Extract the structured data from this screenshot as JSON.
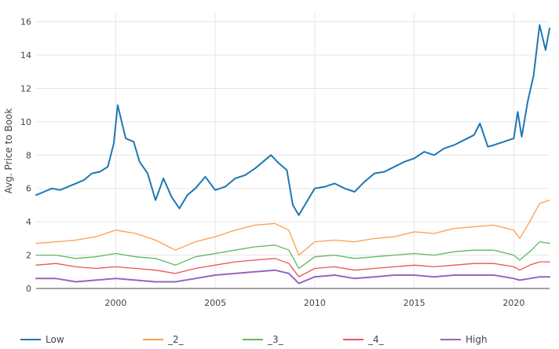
{
  "chart_data": {
    "type": "line",
    "title": "",
    "xlabel": "",
    "ylabel": "Avg. Price to Book",
    "xlim": [
      1996.0,
      2021.8
    ],
    "ylim": [
      0,
      16.5
    ],
    "x_ticks": [
      2000,
      2005,
      2010,
      2015,
      2020
    ],
    "y_ticks": [
      0,
      2,
      4,
      6,
      8,
      10,
      12,
      14,
      16
    ],
    "grid": true,
    "legend_position": "bottom",
    "series": [
      {
        "name": "Low",
        "color": "#1f77b4",
        "x": [
          1996.0,
          1996.4,
          1996.8,
          1997.2,
          1997.6,
          1998.0,
          1998.4,
          1998.8,
          1999.2,
          1999.6,
          1999.9,
          2000.1,
          2000.5,
          2000.9,
          2001.2,
          2001.6,
          2002.0,
          2002.4,
          2002.8,
          2003.2,
          2003.6,
          2004.0,
          2004.5,
          2005.0,
          2005.5,
          2006.0,
          2006.5,
          2007.0,
          2007.4,
          2007.8,
          2008.2,
          2008.6,
          2008.9,
          2009.2,
          2009.6,
          2010.0,
          2010.5,
          2011.0,
          2011.5,
          2012.0,
          2012.5,
          2013.0,
          2013.5,
          2014.0,
          2014.5,
          2015.0,
          2015.5,
          2016.0,
          2016.5,
          2017.0,
          2017.5,
          2018.0,
          2018.3,
          2018.7,
          2019.0,
          2019.5,
          2020.0,
          2020.2,
          2020.4,
          2020.7,
          2021.0,
          2021.3,
          2021.6,
          2021.8
        ],
        "y": [
          5.6,
          5.8,
          6.0,
          5.9,
          6.1,
          6.3,
          6.5,
          6.9,
          7.0,
          7.3,
          8.7,
          11.0,
          9.0,
          8.8,
          7.6,
          6.9,
          5.3,
          6.6,
          5.5,
          4.8,
          5.6,
          6.0,
          6.7,
          5.9,
          6.1,
          6.6,
          6.8,
          7.2,
          7.6,
          8.0,
          7.5,
          7.1,
          5.0,
          4.4,
          5.2,
          6.0,
          6.1,
          6.3,
          6.0,
          5.8,
          6.4,
          6.9,
          7.0,
          7.3,
          7.6,
          7.8,
          8.2,
          8.0,
          8.4,
          8.6,
          8.9,
          9.2,
          9.9,
          8.5,
          8.6,
          8.8,
          9.0,
          10.6,
          9.1,
          11.2,
          12.8,
          15.8,
          14.3,
          15.6
        ]
      },
      {
        "name": "_2_",
        "color": "#ff9e4a",
        "x": [
          1996.0,
          1997.0,
          1998.0,
          1999.0,
          2000.0,
          2001.0,
          2002.0,
          2003.0,
          2004.0,
          2005.0,
          2006.0,
          2007.0,
          2008.0,
          2008.7,
          2009.2,
          2010.0,
          2011.0,
          2012.0,
          2013.0,
          2014.0,
          2015.0,
          2016.0,
          2017.0,
          2018.0,
          2019.0,
          2020.0,
          2020.3,
          2020.8,
          2021.3,
          2021.8
        ],
        "y": [
          2.7,
          2.8,
          2.9,
          3.1,
          3.5,
          3.3,
          2.9,
          2.3,
          2.8,
          3.1,
          3.5,
          3.8,
          3.9,
          3.5,
          2.0,
          2.8,
          2.9,
          2.8,
          3.0,
          3.1,
          3.4,
          3.3,
          3.6,
          3.7,
          3.8,
          3.5,
          3.0,
          4.0,
          5.1,
          5.3
        ]
      },
      {
        "name": "_3_",
        "color": "#5fb85f",
        "x": [
          1996.0,
          1997.0,
          1998.0,
          1999.0,
          2000.0,
          2001.0,
          2002.0,
          2003.0,
          2004.0,
          2005.0,
          2006.0,
          2007.0,
          2008.0,
          2008.7,
          2009.2,
          2010.0,
          2011.0,
          2012.0,
          2013.0,
          2014.0,
          2015.0,
          2016.0,
          2017.0,
          2018.0,
          2019.0,
          2020.0,
          2020.3,
          2020.8,
          2021.3,
          2021.8
        ],
        "y": [
          2.0,
          2.0,
          1.8,
          1.9,
          2.1,
          1.9,
          1.8,
          1.4,
          1.9,
          2.1,
          2.3,
          2.5,
          2.6,
          2.3,
          1.2,
          1.9,
          2.0,
          1.8,
          1.9,
          2.0,
          2.1,
          2.0,
          2.2,
          2.3,
          2.3,
          2.0,
          1.7,
          2.2,
          2.8,
          2.7
        ]
      },
      {
        "name": "_4_",
        "color": "#e8555a",
        "x": [
          1996.0,
          1997.0,
          1998.0,
          1999.0,
          2000.0,
          2001.0,
          2002.0,
          2003.0,
          2004.0,
          2005.0,
          2006.0,
          2007.0,
          2008.0,
          2008.7,
          2009.2,
          2010.0,
          2011.0,
          2012.0,
          2013.0,
          2014.0,
          2015.0,
          2016.0,
          2017.0,
          2018.0,
          2019.0,
          2020.0,
          2020.3,
          2020.8,
          2021.3,
          2021.8
        ],
        "y": [
          1.4,
          1.5,
          1.3,
          1.2,
          1.3,
          1.2,
          1.1,
          0.9,
          1.2,
          1.4,
          1.6,
          1.7,
          1.8,
          1.5,
          0.7,
          1.2,
          1.3,
          1.1,
          1.2,
          1.3,
          1.4,
          1.3,
          1.4,
          1.5,
          1.5,
          1.3,
          1.1,
          1.4,
          1.6,
          1.6
        ]
      },
      {
        "name": "High",
        "color": "#9467bd",
        "x": [
          1996.0,
          1997.0,
          1998.0,
          1999.0,
          2000.0,
          2001.0,
          2002.0,
          2003.0,
          2004.0,
          2005.0,
          2006.0,
          2007.0,
          2008.0,
          2008.7,
          2009.2,
          2010.0,
          2011.0,
          2012.0,
          2013.0,
          2014.0,
          2015.0,
          2016.0,
          2017.0,
          2018.0,
          2019.0,
          2020.0,
          2020.3,
          2020.8,
          2021.3,
          2021.8
        ],
        "y": [
          0.6,
          0.6,
          0.4,
          0.5,
          0.6,
          0.5,
          0.4,
          0.4,
          0.6,
          0.8,
          0.9,
          1.0,
          1.1,
          0.9,
          0.3,
          0.7,
          0.8,
          0.6,
          0.7,
          0.8,
          0.8,
          0.7,
          0.8,
          0.8,
          0.8,
          0.6,
          0.5,
          0.6,
          0.7,
          0.7
        ]
      }
    ]
  }
}
